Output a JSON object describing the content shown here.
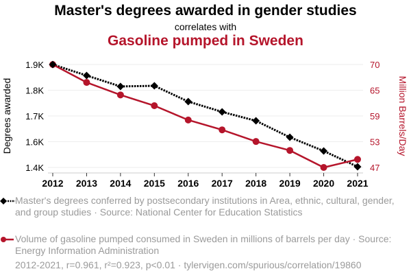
{
  "header": {
    "title": "Master's degrees awarded in gender studies",
    "subtitle": "correlates with",
    "title2": "Gasoline pumped in Sweden"
  },
  "colors": {
    "series1": "#000000",
    "series2": "#b5152b",
    "grid": "#eeeeee",
    "legend_text": "#9a9a9a"
  },
  "chart_data": {
    "type": "line",
    "title": "Master's degrees awarded in gender studies correlates with Gasoline pumped in Sweden",
    "x": [
      "2012",
      "2013",
      "2014",
      "2015",
      "2016",
      "2017",
      "2018",
      "2019",
      "2020",
      "2021"
    ],
    "ylabel_left": "Degrees awarded",
    "ylabel_right": "Million Barrels/Day",
    "yticks_left": [
      "1.9K",
      "1.8K",
      "1.7K",
      "1.6K",
      "1.4K"
    ],
    "yticks_right": [
      "70",
      "65",
      "59",
      "53",
      "47"
    ],
    "ylim_right": [
      47,
      70
    ],
    "grid": true,
    "legend_position": "bottom",
    "series": [
      {
        "name": "Master's degrees conferred by postsecondary institutions in Area, ethnic, cultural, gender, and group studies · Source: National Center for Education Statistics",
        "axis": "left",
        "style": "dotted",
        "marker": "diamond",
        "color": "#000000",
        "pos": [
          0.0,
          0.107,
          0.213,
          0.207,
          0.36,
          0.46,
          0.547,
          0.707,
          0.84,
          0.993
        ]
      },
      {
        "name": "Volume of gasoline pumped consumed in Sweden in millions of barrels per day · Source: Energy Information Administration",
        "axis": "right",
        "style": "solid",
        "marker": "circle",
        "color": "#b5152b",
        "values": [
          70.0,
          66.0,
          63.2,
          60.8,
          57.6,
          55.4,
          52.8,
          50.8,
          47.0,
          48.8
        ]
      }
    ]
  },
  "legend": {
    "item1": "Master's degrees conferred by postsecondary institutions in Area, ethnic, cultural, gender, and group studies · Source: National Center for Education Statistics",
    "item2": "Volume of gasoline pumped consumed in Sweden in millions of barrels per day · Source: Energy Information Administration"
  },
  "footer": "2012-2021, r=0.961, r²=0.923, p<0.01 · tylervigen.com/spurious/correlation/19860"
}
